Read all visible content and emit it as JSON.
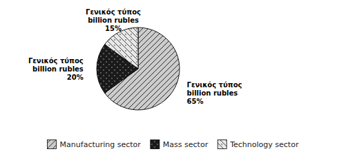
{
  "chart_data": {
    "type": "pie",
    "categories": [
      "Manufacturing sector",
      "Mass sector",
      "Technology sector"
    ],
    "values": [
      65,
      20,
      15
    ],
    "value_labels": [
      "Γενικός τύπος\nbillion rubles\n65%",
      "Γενικός τύπος\nbillion rubles\n20%",
      "Γενικός τύπος\nbillion rubles\n15%"
    ],
    "colors": [
      "#cccccc",
      "#1a1a1a",
      "#e8e8e8"
    ],
    "data_labels": true,
    "legend": "bottom"
  }
}
